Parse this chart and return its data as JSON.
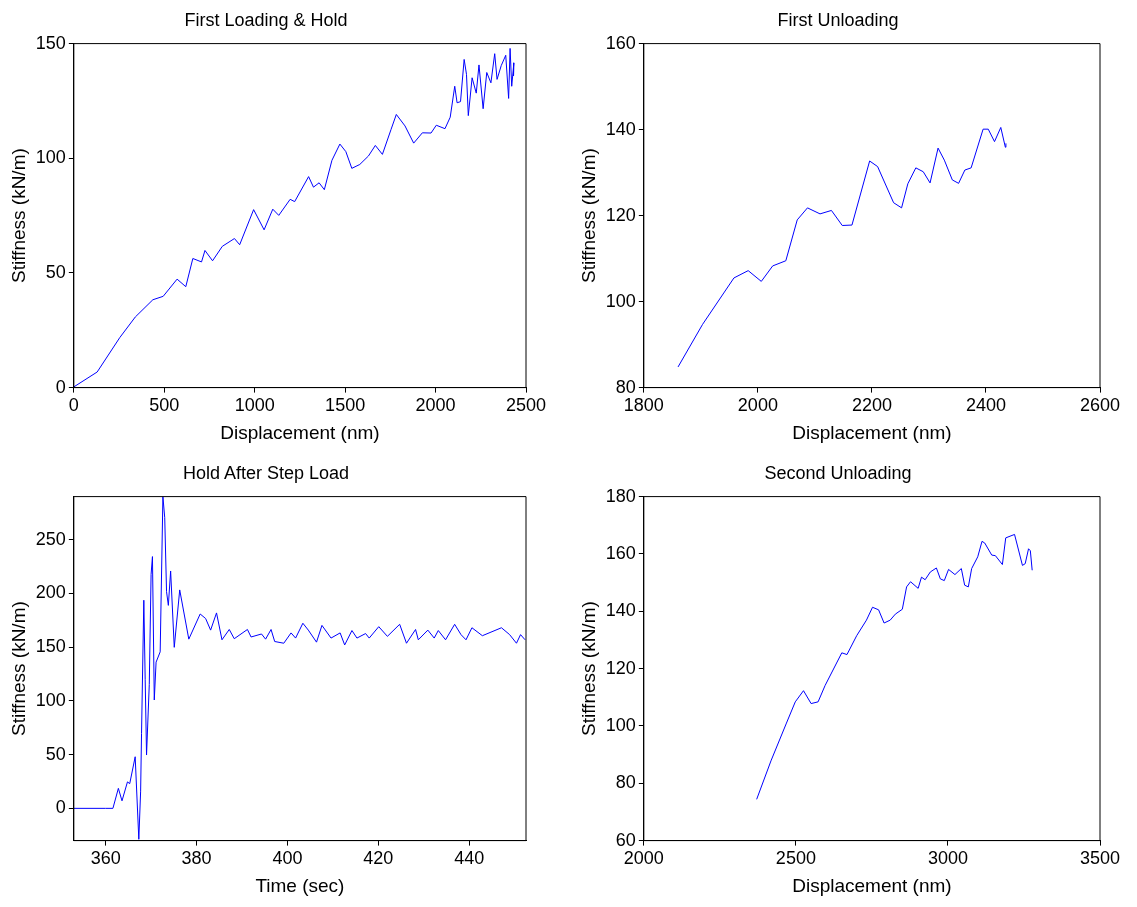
{
  "chart_data": [
    {
      "type": "line",
      "title": "First Loading & Hold",
      "xlabel": "Displacement (nm)",
      "ylabel": "Stiffness (kN/m)",
      "color": "#0000ff",
      "marker": "none",
      "line_style": "solid",
      "grid": false,
      "xlim": [
        0,
        2500
      ],
      "ylim": [
        0,
        150
      ],
      "xticks": [
        0,
        500,
        1000,
        1500,
        2000,
        2500
      ],
      "yticks": [
        0,
        50,
        100,
        150
      ],
      "x": [
        0,
        129,
        254,
        340,
        437,
        494,
        571,
        619,
        658,
        706,
        725,
        767,
        821,
        888,
        917,
        994,
        1052,
        1100,
        1133,
        1196,
        1221,
        1298,
        1325,
        1356,
        1385,
        1427,
        1471,
        1504,
        1537,
        1581,
        1629,
        1667,
        1706,
        1754,
        1783,
        1831,
        1879,
        1927,
        1975,
        2004,
        2052,
        2081,
        2106,
        2119,
        2138,
        2158,
        2171,
        2181,
        2202,
        2225,
        2240,
        2263,
        2283,
        2306,
        2327,
        2340,
        2363,
        2388,
        2404,
        2412,
        2421,
        2433,
        2431
      ],
      "values": [
        0.3,
        6.8,
        21.8,
        30.8,
        38.3,
        39.8,
        47.3,
        44,
        56.3,
        54.8,
        59.8,
        55.3,
        61.6,
        65,
        62.3,
        77.6,
        68.8,
        77.8,
        75.1,
        82.1,
        81.1,
        92,
        87.4,
        89.3,
        86.3,
        99.1,
        106.2,
        102.9,
        95.6,
        97.3,
        101,
        105.6,
        101.7,
        112.6,
        119.1,
        114.1,
        106.6,
        111.1,
        111,
        114.4,
        112.9,
        117.9,
        131.4,
        124.2,
        124.7,
        143.1,
        136.6,
        118.6,
        135.1,
        128.4,
        140.7,
        121.6,
        137.4,
        132.9,
        145.6,
        134.4,
        140.4,
        144.9,
        126.1,
        147.9,
        131.4,
        141.6,
        135.9
      ]
    },
    {
      "type": "line",
      "title": "First Unloading",
      "xlabel": "Displacement (nm)",
      "ylabel": "Stiffness (kN/m)",
      "color": "#0000ff",
      "marker": "none",
      "line_style": "solid",
      "grid": false,
      "xlim": [
        1800,
        2600
      ],
      "ylim": [
        80,
        160
      ],
      "xticks": [
        1800,
        2000,
        2200,
        2400,
        2600
      ],
      "yticks": [
        80,
        100,
        120,
        140,
        160
      ],
      "x": [
        1860,
        1903,
        1958,
        1983,
        2006,
        2026,
        2049,
        2069,
        2087,
        2109,
        2129,
        2148,
        2165,
        2196,
        2210,
        2238,
        2252,
        2263,
        2277,
        2290,
        2302,
        2316,
        2327,
        2341,
        2352,
        2363,
        2374,
        2395,
        2404,
        2415,
        2426,
        2434,
        2435
      ],
      "values": [
        84.8,
        94.7,
        105.5,
        107.2,
        104.7,
        108.3,
        109.5,
        119,
        121.8,
        120.4,
        121.2,
        117.7,
        117.8,
        132.7,
        131.4,
        123,
        121.8,
        127.4,
        131.1,
        130.2,
        127.6,
        135.7,
        132.9,
        128.3,
        127.5,
        130.6,
        131.1,
        140.1,
        140.1,
        137.2,
        140.5,
        135.9,
        136.8
      ]
    },
    {
      "type": "line",
      "title": "Hold After Step Load",
      "xlabel": "Time (sec)",
      "ylabel": "Stiffness (kN/m)",
      "color": "#0000ff",
      "marker": "none",
      "line_style": "solid",
      "grid": false,
      "xlim": [
        353,
        452.5
      ],
      "ylim": [
        -30,
        290
      ],
      "xticks": [
        360,
        380,
        400,
        420,
        440
      ],
      "yticks": [
        0,
        50,
        100,
        150,
        200,
        250
      ],
      "x": [
        353,
        360,
        361.6,
        362.8,
        363.6,
        364.8,
        365.3,
        366.5,
        366.9,
        367.3,
        367.7,
        367.9,
        368.4,
        368.7,
        369,
        369.6,
        370,
        370.3,
        370.7,
        371.1,
        372,
        372.6,
        373,
        373.4,
        373.8,
        374.3,
        375.1,
        376.3,
        378.3,
        380.8,
        382,
        383.1,
        384.4,
        385.6,
        387.2,
        388.3,
        391.2,
        392,
        394.3,
        395.2,
        396.4,
        397.2,
        399.2,
        400.8,
        401.8,
        403.4,
        404.6,
        406.4,
        407.6,
        409.6,
        411.6,
        412.6,
        414.2,
        415.3,
        417.2,
        418,
        420.1,
        422,
        424.7,
        426.2,
        428.2,
        428.8,
        430.9,
        432.3,
        433.2,
        434.8,
        436.8,
        438.2,
        439.3,
        440.6,
        442.9,
        447.1,
        448.9,
        450.4,
        451.3,
        452.3
      ],
      "values": [
        0,
        0,
        0,
        18.6,
        7,
        24.6,
        23,
        48,
        9.6,
        -28.8,
        16,
        69.8,
        193.6,
        120,
        49.6,
        115.2,
        217.6,
        234.2,
        100.8,
        136,
        145.6,
        290,
        270.4,
        201.6,
        188.8,
        220.8,
        149.8,
        203.2,
        157.4,
        180.8,
        176.6,
        165.8,
        181.8,
        156.8,
        166.4,
        157.8,
        166.4,
        159.4,
        162.2,
        157.4,
        166.4,
        155.2,
        153.6,
        163.2,
        158.4,
        172.2,
        165.8,
        154.6,
        170.2,
        158.4,
        163.2,
        152,
        165.4,
        158.4,
        162.6,
        158.4,
        169,
        160,
        171.2,
        153.6,
        166.4,
        156.8,
        165.8,
        158.4,
        165.4,
        156.8,
        171.2,
        161.6,
        156.8,
        168,
        160.6,
        168,
        161.6,
        153.6,
        161.6,
        156.8
      ]
    },
    {
      "type": "line",
      "title": "Second Unloading",
      "xlabel": "Displacement (nm)",
      "ylabel": "Stiffness (kN/m)",
      "color": "#0000ff",
      "marker": "none",
      "line_style": "solid",
      "grid": false,
      "xlim": [
        2000,
        3500
      ],
      "ylim": [
        60,
        180
      ],
      "xticks": [
        2000,
        2500,
        3000,
        3500
      ],
      "yticks": [
        60,
        80,
        100,
        120,
        140,
        160,
        180
      ],
      "x": [
        2371,
        2418,
        2469,
        2498,
        2525,
        2550,
        2573,
        2596,
        2651,
        2668,
        2700,
        2732,
        2752,
        2772,
        2790,
        2810,
        2827,
        2850,
        2864,
        2877,
        2902,
        2913,
        2925,
        2942,
        2962,
        2975,
        2988,
        3002,
        3023,
        3044,
        3055,
        3067,
        3078,
        3098,
        3112,
        3121,
        3144,
        3156,
        3179,
        3190,
        3219,
        3245,
        3254,
        3265,
        3271,
        3277
      ],
      "values": [
        74.4,
        87.8,
        101,
        108.4,
        112.3,
        107.8,
        108.4,
        114.1,
        125.5,
        124.9,
        131.5,
        136.9,
        141.4,
        140.5,
        135.9,
        136.9,
        139,
        140.7,
        148.5,
        150.3,
        148,
        151.9,
        151,
        153.7,
        155.1,
        151.3,
        150.7,
        154.6,
        152.8,
        154.9,
        149.1,
        148.5,
        154.9,
        159,
        164.4,
        163.8,
        159.6,
        159.4,
        156.3,
        165.6,
        166.8,
        156,
        156.6,
        161.8,
        161.1,
        154.3
      ]
    }
  ]
}
